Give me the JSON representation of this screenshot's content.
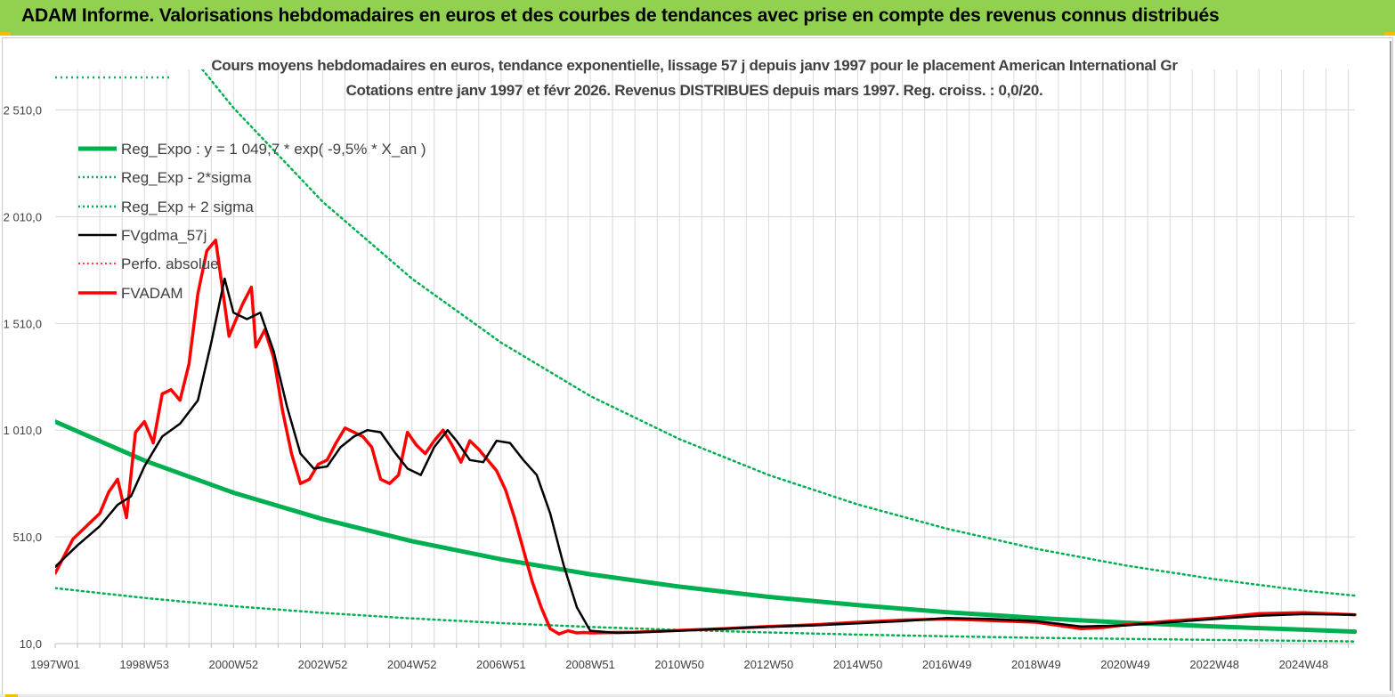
{
  "header": {
    "title": "ADAM Informe. Valorisations hebdomadaires en euros et des courbes de tendances avec prise en compte des revenus connus distribués"
  },
  "colors": {
    "banner": "#92d050",
    "regression": "#00b050",
    "gdma": "#000000",
    "fvadam": "#ff0000",
    "gridline": "#d9d9d9"
  },
  "chart_data": {
    "type": "line",
    "title": "Cours moyens hebdomadaires en euros, tendance exponentielle, lissage 57 j depuis janv 1997  pour le placement American International Gr",
    "subtitle": "Cotations entre janv 1997 et févr 2026. Revenus DISTRIBUES depuis mars 1997. Reg. croiss. : 0,0/20.",
    "xlabel": "",
    "ylabel": "",
    "x_range_years": [
      1997.0,
      2026.15
    ],
    "ylim": [
      10,
      2700
    ],
    "y_ticks": [
      10,
      510,
      1010,
      1510,
      2010,
      2510
    ],
    "y_tick_labels": [
      "10,0",
      "510,0",
      "1 010,0",
      "1 510,0",
      "2 010,0",
      "2 510,0"
    ],
    "x_ticks": [
      {
        "label": "1997W01",
        "year": 1997.0
      },
      {
        "label": "1998W53",
        "year": 1999.0
      },
      {
        "label": "2000W52",
        "year": 2001.0
      },
      {
        "label": "2002W52",
        "year": 2003.0
      },
      {
        "label": "2004W52",
        "year": 2005.0
      },
      {
        "label": "2006W51",
        "year": 2007.0
      },
      {
        "label": "2008W51",
        "year": 2009.0
      },
      {
        "label": "2010W50",
        "year": 2011.0
      },
      {
        "label": "2012W50",
        "year": 2013.0
      },
      {
        "label": "2014W50",
        "year": 2015.0
      },
      {
        "label": "2016W49",
        "year": 2017.0
      },
      {
        "label": "2018W49",
        "year": 2019.0
      },
      {
        "label": "2020W49",
        "year": 2021.0
      },
      {
        "label": "2022W48",
        "year": 2023.0
      },
      {
        "label": "2024W48",
        "year": 2025.0
      }
    ],
    "legend": [
      {
        "name": "Reg_Expo : y = 1 049,7 * exp( -9,5% *  X_an )",
        "style": "thick-solid",
        "color": "#00b050"
      },
      {
        "name": "Reg_Exp - 2*sigma",
        "style": "dotted",
        "color": "#00b050"
      },
      {
        "name": "Reg_Exp + 2 sigma",
        "style": "dotted",
        "color": "#00b050"
      },
      {
        "name": "FVgdma_57j",
        "style": "solid",
        "color": "#000000"
      },
      {
        "name": "Perfo. absolue",
        "style": "dotted",
        "color": "#ff0000"
      },
      {
        "name": "FVADAM",
        "style": "thick-solid",
        "color": "#ff0000"
      }
    ],
    "series": [
      {
        "name": "Reg_Expo",
        "x": [
          1997.0,
          1999.0,
          2001.0,
          2003.0,
          2005.0,
          2007.0,
          2009.0,
          2011.0,
          2013.0,
          2015.0,
          2017.0,
          2019.0,
          2021.0,
          2023.0,
          2025.0,
          2026.15
        ],
        "y": [
          1049.7,
          868,
          717,
          593,
          490,
          405,
          335,
          277,
          229,
          190,
          157,
          130,
          108,
          90,
          75,
          66
        ]
      },
      {
        "name": "Reg_Exp - 2*sigma",
        "x": [
          1997.0,
          1999.0,
          2001.0,
          2003.0,
          2005.0,
          2007.0,
          2009.0,
          2011.0,
          2013.0,
          2015.0,
          2017.0,
          2019.0,
          2021.0,
          2023.0,
          2025.0,
          2026.15
        ],
        "y": [
          270,
          224,
          185,
          154,
          128,
          106,
          88,
          74,
          62,
          52,
          44,
          37,
          32,
          27,
          23,
          20
        ]
      },
      {
        "name": "Reg_Exp + 2 sigma",
        "x": [
          2000.3,
          2001.0,
          2003.0,
          2005.0,
          2007.0,
          2009.0,
          2011.0,
          2013.0,
          2015.0,
          2017.0,
          2019.0,
          2021.0,
          2023.0,
          2025.0,
          2026.15
        ],
        "y": [
          2710,
          2520,
          2080,
          1720,
          1420,
          1170,
          968,
          800,
          662,
          548,
          454,
          376,
          312,
          258,
          235
        ]
      },
      {
        "name": "FVgdma_57j",
        "x": [
          1997.0,
          1997.5,
          1998.0,
          1998.4,
          1998.7,
          1999.0,
          1999.4,
          1999.8,
          2000.2,
          2000.5,
          2000.8,
          2001.0,
          2001.3,
          2001.6,
          2001.9,
          2002.2,
          2002.5,
          2002.8,
          2003.1,
          2003.4,
          2003.7,
          2004.0,
          2004.3,
          2004.6,
          2004.9,
          2005.2,
          2005.5,
          2005.8,
          2006.0,
          2006.3,
          2006.6,
          2006.9,
          2007.2,
          2007.5,
          2007.8,
          2008.1,
          2008.4,
          2008.7,
          2009.0,
          2009.3,
          2009.6,
          2010.0,
          2011.0,
          2012.0,
          2013.0,
          2014.0,
          2015.0,
          2016.0,
          2017.0,
          2018.0,
          2019.0,
          2020.0,
          2021.0,
          2022.0,
          2023.0,
          2024.0,
          2025.0,
          2026.15
        ],
        "y": [
          370,
          470,
          560,
          660,
          700,
          840,
          980,
          1040,
          1150,
          1420,
          1720,
          1560,
          1530,
          1560,
          1380,
          1120,
          900,
          830,
          840,
          930,
          980,
          1010,
          1000,
          910,
          830,
          800,
          930,
          1010,
          960,
          870,
          860,
          960,
          950,
          870,
          800,
          620,
          380,
          180,
          70,
          65,
          60,
          62,
          70,
          80,
          88,
          95,
          105,
          115,
          130,
          125,
          115,
          90,
          95,
          110,
          125,
          140,
          148,
          145
        ]
      },
      {
        "name": "FVADAM",
        "x": [
          1997.0,
          1997.2,
          1997.4,
          1997.6,
          1997.8,
          1998.0,
          1998.2,
          1998.4,
          1998.6,
          1998.8,
          1999.0,
          1999.2,
          1999.4,
          1999.6,
          1999.8,
          2000.0,
          2000.2,
          2000.4,
          2000.6,
          2000.8,
          2000.9,
          2001.0,
          2001.2,
          2001.4,
          2001.5,
          2001.7,
          2001.9,
          2002.1,
          2002.3,
          2002.5,
          2002.7,
          2002.9,
          2003.1,
          2003.3,
          2003.5,
          2003.7,
          2003.9,
          2004.1,
          2004.3,
          2004.5,
          2004.7,
          2004.9,
          2005.1,
          2005.3,
          2005.5,
          2005.7,
          2005.9,
          2006.1,
          2006.3,
          2006.5,
          2006.7,
          2006.9,
          2007.1,
          2007.3,
          2007.5,
          2007.7,
          2007.9,
          2008.1,
          2008.3,
          2008.5,
          2008.7,
          2008.85,
          2009.0,
          2009.3,
          2009.6,
          2010.0,
          2011.0,
          2012.0,
          2013.0,
          2014.0,
          2015.0,
          2016.0,
          2017.0,
          2018.0,
          2019.0,
          2020.0,
          2020.5,
          2021.0,
          2022.0,
          2023.0,
          2024.0,
          2025.0,
          2026.15
        ],
        "y": [
          340,
          420,
          500,
          540,
          580,
          620,
          720,
          780,
          600,
          1000,
          1050,
          950,
          1180,
          1200,
          1150,
          1320,
          1650,
          1850,
          1900,
          1600,
          1450,
          1500,
          1600,
          1680,
          1400,
          1480,
          1350,
          1100,
          900,
          760,
          780,
          850,
          870,
          950,
          1020,
          1000,
          980,
          930,
          780,
          760,
          800,
          1000,
          940,
          900,
          960,
          1010,
          940,
          860,
          960,
          920,
          870,
          820,
          730,
          600,
          450,
          300,
          180,
          80,
          55,
          70,
          60,
          62,
          60,
          61,
          62,
          63,
          72,
          80,
          90,
          98,
          110,
          120,
          125,
          118,
          110,
          80,
          85,
          98,
          115,
          130,
          150,
          155,
          145
        ]
      }
    ]
  }
}
